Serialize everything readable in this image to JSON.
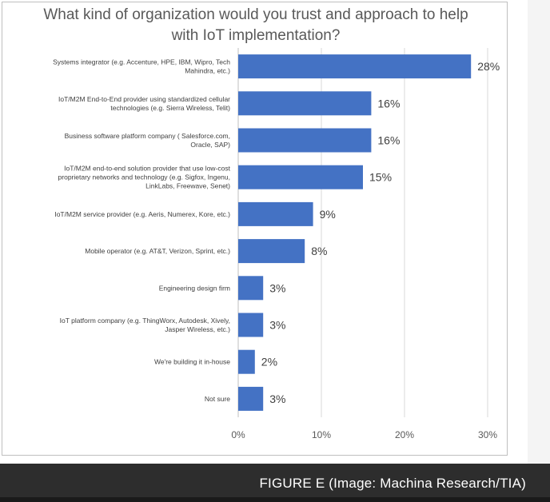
{
  "chart_data": {
    "type": "bar",
    "orientation": "horizontal",
    "title": "What kind of organization would you trust and approach to help with IoT implementation?",
    "categories": [
      [
        "Systems integrator (e.g. Accenture, HPE, IBM, Wipro, Tech",
        "Mahindra, etc.)"
      ],
      [
        "IoT/M2M End-to-End provider using standardized cellular",
        "technologies (e.g. Sierra Wireless, Telit)"
      ],
      [
        "Business software platform company ( Salesforce.com,",
        "Oracle, SAP)"
      ],
      [
        "IoT/M2M end-to-end solution provider that use low-cost",
        "proprietary networks and technology (e.g. Sigfox, Ingenu,",
        "LinkLabs, Freewave, Senet)"
      ],
      [
        "IoT/M2M service provider (e.g. Aeris, Numerex, Kore, etc.)"
      ],
      [
        "Mobile operator (e.g. AT&T, Verizon, Sprint, etc.)"
      ],
      [
        "Engineering design firm"
      ],
      [
        "IoT platform company (e.g. ThingWorx, Autodesk, Xively,",
        "Jasper Wireless, etc.)"
      ],
      [
        "We're building it in-house"
      ],
      [
        "Not sure"
      ]
    ],
    "values": [
      28,
      16,
      16,
      15,
      9,
      8,
      3,
      3,
      2,
      3
    ],
    "value_labels": [
      "28%",
      "16%",
      "16%",
      "15%",
      "9%",
      "8%",
      "3%",
      "3%",
      "2%",
      "3%"
    ],
    "xticks": [
      "0%",
      "10%",
      "20%",
      "30%"
    ],
    "xlim": [
      0,
      30
    ],
    "xlabel": "",
    "ylabel": "",
    "grid": true,
    "bar_color": "#4472c4"
  },
  "caption": "FIGURE E (Image: Machina Research/TIA)"
}
